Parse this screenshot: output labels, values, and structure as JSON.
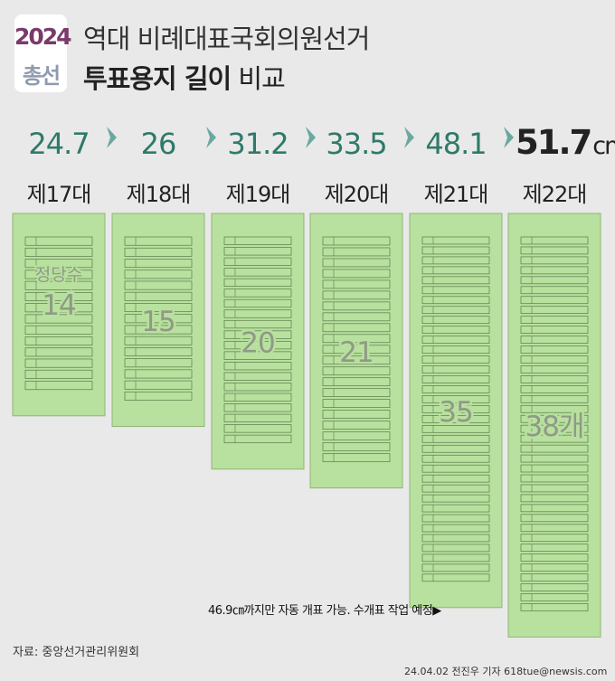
{
  "logo": {
    "year": "2024",
    "word": "총선"
  },
  "title": {
    "line1": "역대 비례대표국회의원선거",
    "line2_bold": "투표용지 길이",
    "line2_rest": " 비교"
  },
  "chart_data": {
    "type": "bar",
    "categories": [
      "제17대",
      "제18대",
      "제19대",
      "제20대",
      "제21대",
      "제22대"
    ],
    "series": [
      {
        "values": [
          24.7,
          26,
          31.2,
          33.5,
          48.1,
          51.7
        ]
      }
    ],
    "value_labels": [
      "24.7",
      "26",
      "31.2",
      "33.5",
      "48.1",
      "51.7"
    ],
    "unit": "cm",
    "party_counts": [
      14,
      15,
      20,
      21,
      35,
      38
    ],
    "party_count_labels": [
      "14",
      "15",
      "20",
      "21",
      "35",
      "38개"
    ],
    "party_count_title": "정당수",
    "colors": {
      "ballot_fill": "#b8e09e",
      "ballot_stroke": "#8fb674",
      "line_color": "#5a7a4a",
      "value_color": "#2e7a6a",
      "highlight_value_color": "#222222",
      "arrow_color": "#6aa8a0",
      "party_count_color": "#8f9a86"
    }
  },
  "note": "46.9㎝까지만 자동 개표 가능. 수개표 작업 예정▶",
  "source": "자료: 중앙선거관리위원회",
  "credit": "24.04.02 전진우 기자 618tue@newsis.com"
}
